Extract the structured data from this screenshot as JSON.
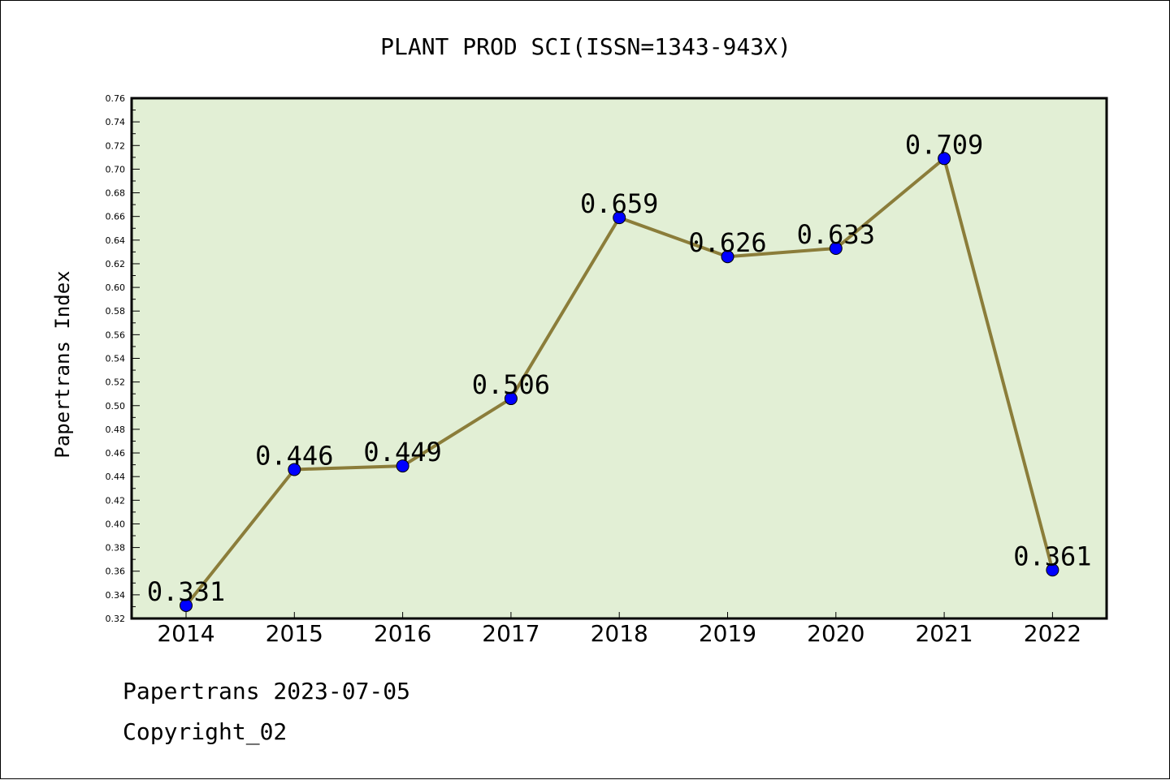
{
  "chart_data": {
    "type": "line",
    "title": "PLANT PROD SCI(ISSN=1343-943X)",
    "xlabel": "",
    "ylabel": "Papertrans Index",
    "categories": [
      "2014",
      "2015",
      "2016",
      "2017",
      "2018",
      "2019",
      "2020",
      "2021",
      "2022"
    ],
    "series": [
      {
        "values": [
          0.331,
          0.446,
          0.449,
          0.506,
          0.659,
          0.626,
          0.633,
          0.709,
          0.361
        ],
        "data_labels": [
          "0.331",
          "0.446",
          "0.449",
          "0.506",
          "0.659",
          "0.626",
          "0.633",
          "0.709",
          "0.361"
        ]
      }
    ],
    "ylim": [
      0.32,
      0.76
    ],
    "yticks": [
      "0.32",
      "0.34",
      "0.36",
      "0.38",
      "0.40",
      "0.42",
      "0.44",
      "0.46",
      "0.48",
      "0.50",
      "0.52",
      "0.54",
      "0.56",
      "0.58",
      "0.60",
      "0.62",
      "0.64",
      "0.66",
      "0.68",
      "0.70",
      "0.72",
      "0.74",
      "0.76"
    ],
    "grid": false,
    "colors": {
      "plot_background": "#e2efd5",
      "line": "#8b7d3a",
      "marker": "#0000ff"
    }
  },
  "footer": {
    "line1": "Papertrans 2023-07-05",
    "line2": "Copyright_02"
  }
}
